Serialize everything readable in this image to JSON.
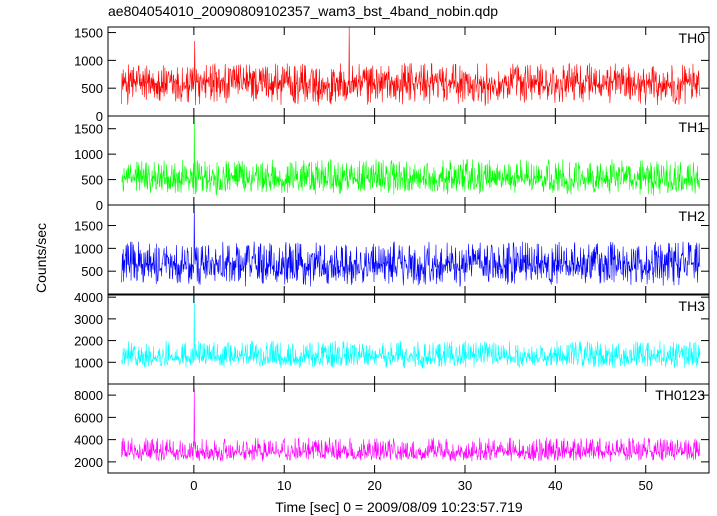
{
  "chart_data": {
    "type": "line",
    "title": "ae804054010_20090809102357_wam3_bst_4band_nobin.qdp",
    "xlabel": "Time [sec] 0 = 2009/08/09 10:23:57.719",
    "ylabel": "Counts/sec",
    "xlim": [
      -9.5,
      57
    ],
    "x_ticks": [
      0,
      10,
      20,
      30,
      40,
      50
    ],
    "data_x_range": [
      -8,
      56
    ],
    "grid": false,
    "legend": "none",
    "panels": [
      {
        "name": "TH0",
        "color": "#ff0000",
        "ylim": [
          0,
          1600
        ],
        "y_ticks": [
          0,
          500,
          1000,
          1500
        ],
        "baseline": 600,
        "noise_low": 180,
        "noise_high": 950,
        "spikes": [
          {
            "x": 17.2,
            "y": 1600
          },
          {
            "x": 0.1,
            "y": 1350
          }
        ]
      },
      {
        "name": "TH1",
        "color": "#00ff00",
        "ylim": [
          0,
          1750
        ],
        "y_ticks": [
          0,
          500,
          1000,
          1500
        ],
        "baseline": 520,
        "noise_low": 180,
        "noise_high": 900,
        "spikes": [
          {
            "x": 0.05,
            "y": 1750
          }
        ]
      },
      {
        "name": "TH2",
        "color": "#0000ff",
        "ylim": [
          0,
          1950
        ],
        "y_ticks": [
          500,
          1000,
          1500
        ],
        "baseline": 640,
        "noise_low": 160,
        "noise_high": 1150,
        "spikes": [
          {
            "x": 0.05,
            "y": 1950
          }
        ]
      },
      {
        "name": "TH3",
        "color": "#00ffff",
        "ylim": [
          0,
          4100
        ],
        "y_ticks": [
          1000,
          2000,
          3000,
          4000
        ],
        "baseline": 1250,
        "noise_low": 700,
        "noise_high": 2000,
        "spikes": [
          {
            "x": 0.05,
            "y": 4100
          }
        ]
      },
      {
        "name": "TH0123",
        "color": "#ff00ff",
        "ylim": [
          1000,
          9000
        ],
        "y_ticks": [
          2000,
          4000,
          6000,
          8000
        ],
        "baseline": 2900,
        "noise_low": 2000,
        "noise_high": 4200,
        "spikes": [
          {
            "x": 0.05,
            "y": 8600
          }
        ]
      }
    ]
  }
}
